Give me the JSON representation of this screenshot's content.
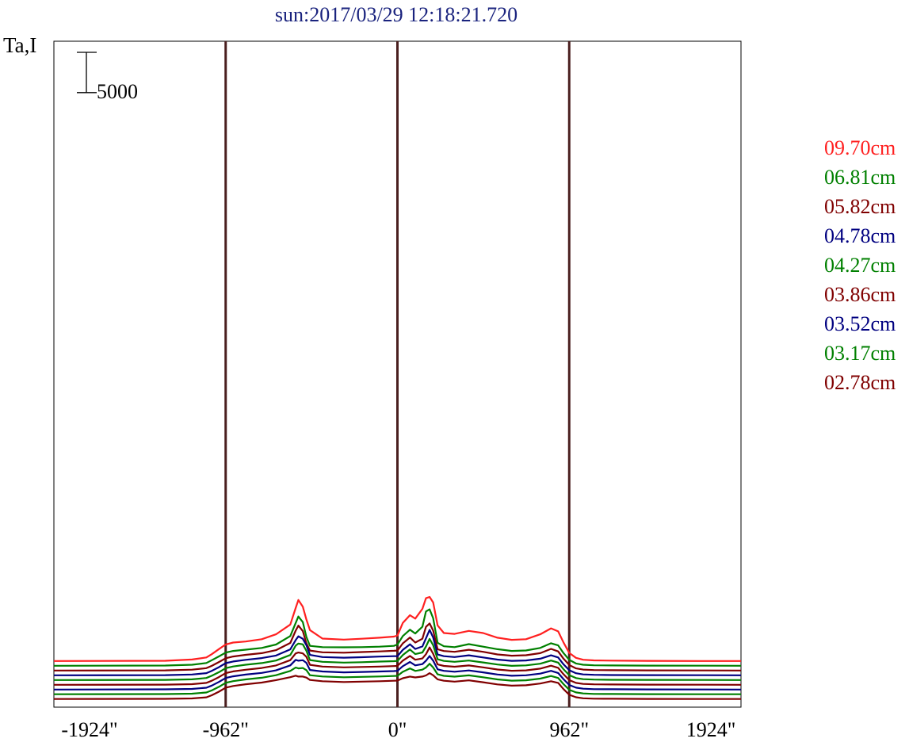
{
  "chart_data": {
    "type": "line",
    "title": "sun:2017/03/29 12:18:21.720",
    "ylabel": "Ta,I",
    "scale_bar_label": "5000",
    "scale_bar_value": 5000,
    "x_ticks": [
      {
        "value": -1924,
        "label": "-1924\""
      },
      {
        "value": -962,
        "label": "-962\""
      },
      {
        "value": 0,
        "label": "0\""
      },
      {
        "value": 962,
        "label": "962\""
      },
      {
        "value": 1924,
        "label": "1924\""
      }
    ],
    "xlim": [
      -1924,
      1924
    ],
    "vertical_lines": [
      -962,
      0,
      962
    ],
    "legend_placement": "right",
    "x": [
      -1924,
      -1300,
      -1150,
      -1070,
      -1040,
      -1000,
      -962,
      -920,
      -850,
      -760,
      -680,
      -600,
      -570,
      -555,
      -530,
      -510,
      -490,
      -420,
      -300,
      -200,
      -100,
      -20,
      0,
      30,
      70,
      100,
      140,
      160,
      180,
      200,
      225,
      260,
      320,
      400,
      480,
      560,
      640,
      720,
      800,
      860,
      900,
      930,
      962,
      1000,
      1040,
      1100,
      1200,
      1400,
      1700,
      1924
    ],
    "series": [
      {
        "name": "09.70cm",
        "color": "#ff2020",
        "base": 7700,
        "amp": [
          0,
          60,
          350,
          850,
          1600,
          2800,
          3900,
          4350,
          4600,
          5150,
          6300,
          8600,
          12500,
          14400,
          12800,
          9800,
          7300,
          5300,
          5050,
          5250,
          5500,
          5750,
          6000,
          9000,
          10800,
          10000,
          12300,
          14800,
          15100,
          13800,
          8400,
          6600,
          6400,
          7100,
          6600,
          5500,
          5000,
          5150,
          6300,
          7700,
          7000,
          4400,
          1900,
          750,
          300,
          150,
          90,
          30,
          10,
          0
        ]
      },
      {
        "name": "06.81cm",
        "color": "#008000",
        "base": 6580,
        "amp": [
          0,
          50,
          250,
          650,
          1300,
          2200,
          3100,
          3500,
          3800,
          4200,
          5000,
          7000,
          10100,
          11600,
          10300,
          6800,
          4700,
          4400,
          4350,
          4400,
          4500,
          4700,
          5000,
          7000,
          8500,
          7600,
          9200,
          12800,
          13300,
          11200,
          5400,
          4600,
          4400,
          5100,
          4500,
          3900,
          3500,
          3600,
          4200,
          5300,
          4800,
          3000,
          1400,
          550,
          250,
          120,
          80,
          30,
          10,
          0
        ]
      },
      {
        "name": "05.82cm",
        "color": "#800000",
        "base": 5460,
        "amp": [
          0,
          40,
          200,
          550,
          1100,
          2000,
          2900,
          3300,
          3700,
          4100,
          4800,
          6500,
          9400,
          10600,
          9300,
          6400,
          4700,
          4300,
          4200,
          4350,
          4500,
          4650,
          4700,
          6400,
          7800,
          6600,
          7500,
          10300,
          11100,
          9400,
          5000,
          4600,
          4400,
          4900,
          4400,
          3800,
          3500,
          3600,
          4100,
          5100,
          4500,
          2800,
          1300,
          500,
          220,
          110,
          70,
          30,
          10,
          0
        ]
      },
      {
        "name": "04.78cm",
        "color": "#000080",
        "base": 4340,
        "amp": [
          0,
          40,
          180,
          500,
          1050,
          1900,
          2850,
          3250,
          3650,
          4050,
          4650,
          6100,
          8300,
          9200,
          8600,
          7100,
          4800,
          4300,
          4150,
          4250,
          4400,
          4500,
          4500,
          6000,
          7300,
          6200,
          6800,
          8700,
          10700,
          8900,
          4900,
          4500,
          4300,
          4700,
          4200,
          3700,
          3400,
          3500,
          3900,
          4700,
          4200,
          2600,
          1200,
          480,
          210,
          100,
          60,
          30,
          10,
          0
        ]
      },
      {
        "name": "04.27cm",
        "color": "#008000",
        "base": 3220,
        "amp": [
          0,
          40,
          160,
          480,
          1000,
          1850,
          2800,
          3200,
          3600,
          4000,
          4600,
          5900,
          8100,
          8600,
          8400,
          6900,
          4700,
          4300,
          4100,
          4200,
          4350,
          4450,
          4500,
          5900,
          7200,
          6100,
          6500,
          7900,
          9700,
          8200,
          4900,
          4500,
          4300,
          4600,
          4150,
          3650,
          3350,
          3450,
          3850,
          4600,
          4100,
          2550,
          1150,
          470,
          200,
          100,
          60,
          30,
          10,
          0
        ]
      },
      {
        "name": "03.86cm",
        "color": "#800000",
        "base": 2100,
        "amp": [
          0,
          40,
          150,
          450,
          950,
          1800,
          2750,
          3150,
          3550,
          3950,
          4550,
          5800,
          7400,
          7600,
          7400,
          6600,
          4700,
          4300,
          4100,
          4200,
          4300,
          4400,
          4450,
          5700,
          6800,
          5900,
          6200,
          7200,
          8800,
          7300,
          4800,
          4450,
          4250,
          4550,
          4100,
          3600,
          3300,
          3400,
          3800,
          4500,
          4000,
          2500,
          1100,
          450,
          200,
          100,
          60,
          30,
          10,
          0
        ]
      },
      {
        "name": "03.52cm",
        "color": "#000080",
        "base": 980,
        "amp": [
          0,
          40,
          150,
          430,
          930,
          1780,
          2720,
          3120,
          3520,
          3920,
          4520,
          5700,
          7000,
          6800,
          6900,
          6300,
          4600,
          4250,
          4050,
          4150,
          4250,
          4350,
          4400,
          5500,
          6500,
          5700,
          6000,
          6800,
          7900,
          6800,
          4750,
          4400,
          4200,
          4500,
          4050,
          3550,
          3250,
          3350,
          3750,
          4400,
          3900,
          2450,
          1080,
          440,
          190,
          90,
          60,
          30,
          10,
          0
        ]
      },
      {
        "name": "03.17cm",
        "color": "#008000",
        "base": -140,
        "amp": [
          0,
          40,
          140,
          420,
          900,
          1750,
          2700,
          3100,
          3500,
          3900,
          4500,
          5500,
          6300,
          6100,
          6200,
          5700,
          4500,
          4200,
          4000,
          4100,
          4200,
          4300,
          4350,
          5300,
          6100,
          5500,
          5800,
          6300,
          7200,
          6300,
          4700,
          4350,
          4150,
          4450,
          4000,
          3500,
          3200,
          3300,
          3700,
          4300,
          3850,
          2400,
          1050,
          430,
          190,
          90,
          60,
          30,
          10,
          0
        ]
      },
      {
        "name": "02.78cm",
        "color": "#800000",
        "base": -1260,
        "amp": [
          0,
          40,
          130,
          400,
          880,
          1720,
          2680,
          3080,
          3480,
          3880,
          4450,
          5150,
          5500,
          5300,
          5300,
          5050,
          4500,
          4200,
          4000,
          4100,
          4200,
          4300,
          4350,
          4900,
          5300,
          5100,
          5300,
          5550,
          6100,
          5600,
          4650,
          4300,
          4100,
          4400,
          3950,
          3450,
          3150,
          3250,
          3650,
          4200,
          3800,
          2350,
          1000,
          420,
          180,
          90,
          60,
          30,
          10,
          0
        ]
      }
    ]
  }
}
